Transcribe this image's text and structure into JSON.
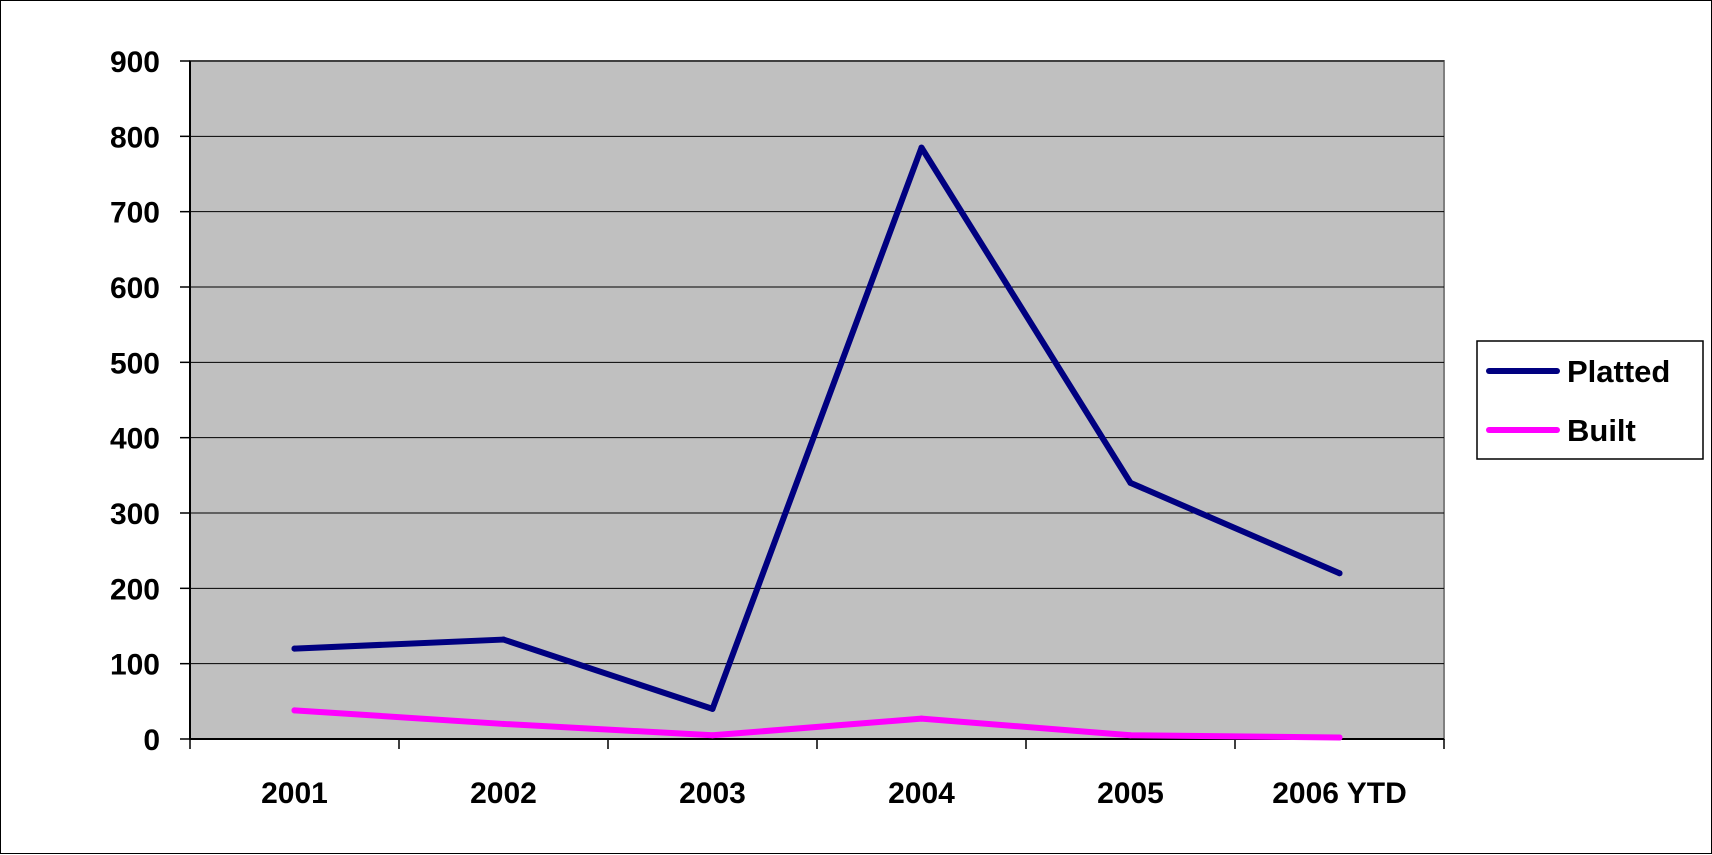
{
  "chart_data": {
    "type": "line",
    "title": "",
    "xlabel": "",
    "ylabel": "",
    "categories": [
      "2001",
      "2002",
      "2003",
      "2004",
      "2005",
      "2006  YTD"
    ],
    "series": [
      {
        "name": "Platted",
        "color": "#000080",
        "values": [
          120,
          132,
          40,
          785,
          340,
          220
        ]
      },
      {
        "name": "Built",
        "color": "#ff00ff",
        "values": [
          38,
          20,
          5,
          27,
          5,
          2
        ]
      }
    ],
    "ylim": [
      0,
      900
    ],
    "yticks": [
      0,
      100,
      200,
      300,
      400,
      500,
      600,
      700,
      800,
      900
    ],
    "grid": true,
    "plot_background": "#c0c0c0",
    "legend_position": "right"
  }
}
